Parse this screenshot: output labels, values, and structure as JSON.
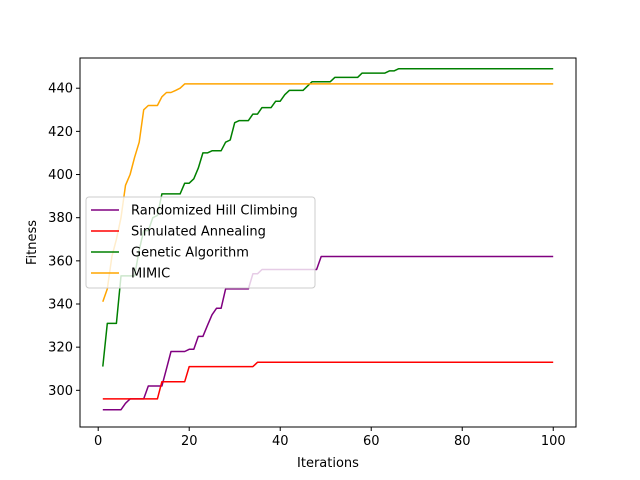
{
  "chart_data": {
    "type": "line",
    "title": "",
    "xlabel": "Iterations",
    "ylabel": "Fitness",
    "xlim": [
      -4,
      105
    ],
    "ylim": [
      283,
      454
    ],
    "xticks": [
      0,
      20,
      40,
      60,
      80,
      100
    ],
    "yticks": [
      300,
      320,
      340,
      360,
      380,
      400,
      420,
      440
    ],
    "grid": false,
    "legend_position": "center-left",
    "series": [
      {
        "name": "Randomized Hill Climbing",
        "color": "#800080",
        "points": [
          [
            1,
            291
          ],
          [
            2,
            291
          ],
          [
            3,
            291
          ],
          [
            4,
            291
          ],
          [
            5,
            291
          ],
          [
            6,
            294
          ],
          [
            7,
            296
          ],
          [
            8,
            296
          ],
          [
            9,
            296
          ],
          [
            10,
            296
          ],
          [
            11,
            302
          ],
          [
            12,
            302
          ],
          [
            13,
            302
          ],
          [
            14,
            302
          ],
          [
            15,
            310
          ],
          [
            16,
            318
          ],
          [
            17,
            318
          ],
          [
            18,
            318
          ],
          [
            19,
            318
          ],
          [
            20,
            319
          ],
          [
            21,
            319
          ],
          [
            22,
            325
          ],
          [
            23,
            325
          ],
          [
            24,
            330
          ],
          [
            25,
            335
          ],
          [
            26,
            338
          ],
          [
            27,
            338
          ],
          [
            28,
            347
          ],
          [
            29,
            347
          ],
          [
            30,
            347
          ],
          [
            31,
            347
          ],
          [
            32,
            347
          ],
          [
            33,
            347
          ],
          [
            34,
            354
          ],
          [
            35,
            354
          ],
          [
            36,
            356
          ],
          [
            37,
            356
          ],
          [
            40,
            356
          ],
          [
            45,
            356
          ],
          [
            48,
            356
          ],
          [
            49,
            362
          ],
          [
            60,
            362
          ],
          [
            80,
            362
          ],
          [
            100,
            362
          ]
        ]
      },
      {
        "name": "Simulated Annealing",
        "color": "#ff0000",
        "points": [
          [
            1,
            296
          ],
          [
            2,
            296
          ],
          [
            3,
            296
          ],
          [
            5,
            296
          ],
          [
            8,
            296
          ],
          [
            10,
            296
          ],
          [
            12,
            296
          ],
          [
            13,
            296
          ],
          [
            14,
            304
          ],
          [
            15,
            304
          ],
          [
            17,
            304
          ],
          [
            19,
            304
          ],
          [
            20,
            311
          ],
          [
            21,
            311
          ],
          [
            25,
            311
          ],
          [
            30,
            311
          ],
          [
            34,
            311
          ],
          [
            35,
            313
          ],
          [
            40,
            313
          ],
          [
            60,
            313
          ],
          [
            80,
            313
          ],
          [
            100,
            313
          ]
        ]
      },
      {
        "name": "Genetic Algorithm",
        "color": "#008000",
        "points": [
          [
            1,
            311
          ],
          [
            2,
            331
          ],
          [
            3,
            331
          ],
          [
            4,
            331
          ],
          [
            5,
            353
          ],
          [
            6,
            353
          ],
          [
            7,
            353
          ],
          [
            8,
            353
          ],
          [
            9,
            365
          ],
          [
            10,
            374
          ],
          [
            11,
            374
          ],
          [
            12,
            380
          ],
          [
            13,
            381
          ],
          [
            14,
            391
          ],
          [
            15,
            391
          ],
          [
            16,
            391
          ],
          [
            17,
            391
          ],
          [
            18,
            391
          ],
          [
            19,
            396
          ],
          [
            20,
            396
          ],
          [
            21,
            398
          ],
          [
            22,
            403
          ],
          [
            23,
            410
          ],
          [
            24,
            410
          ],
          [
            25,
            411
          ],
          [
            26,
            411
          ],
          [
            27,
            411
          ],
          [
            28,
            415
          ],
          [
            29,
            416
          ],
          [
            30,
            424
          ],
          [
            31,
            425
          ],
          [
            32,
            425
          ],
          [
            33,
            425
          ],
          [
            34,
            428
          ],
          [
            35,
            428
          ],
          [
            36,
            431
          ],
          [
            37,
            431
          ],
          [
            38,
            431
          ],
          [
            39,
            434
          ],
          [
            40,
            434
          ],
          [
            41,
            437
          ],
          [
            42,
            439
          ],
          [
            43,
            439
          ],
          [
            44,
            439
          ],
          [
            45,
            439
          ],
          [
            46,
            441
          ],
          [
            47,
            443
          ],
          [
            50,
            443
          ],
          [
            51,
            443
          ],
          [
            52,
            445
          ],
          [
            55,
            445
          ],
          [
            57,
            445
          ],
          [
            58,
            447
          ],
          [
            60,
            447
          ],
          [
            63,
            447
          ],
          [
            64,
            448
          ],
          [
            65,
            448
          ],
          [
            66,
            449
          ],
          [
            70,
            449
          ],
          [
            80,
            449
          ],
          [
            100,
            449
          ]
        ]
      },
      {
        "name": "MIMIC",
        "color": "#ffa500",
        "points": [
          [
            1,
            341
          ],
          [
            2,
            347
          ],
          [
            3,
            362
          ],
          [
            4,
            370
          ],
          [
            5,
            380
          ],
          [
            6,
            395
          ],
          [
            7,
            400
          ],
          [
            8,
            408
          ],
          [
            9,
            415
          ],
          [
            10,
            430
          ],
          [
            11,
            432
          ],
          [
            12,
            432
          ],
          [
            13,
            432
          ],
          [
            14,
            436
          ],
          [
            15,
            438
          ],
          [
            16,
            438
          ],
          [
            17,
            439
          ],
          [
            18,
            440
          ],
          [
            19,
            442
          ],
          [
            20,
            442
          ],
          [
            30,
            442
          ],
          [
            40,
            442
          ],
          [
            50,
            442
          ],
          [
            60,
            442
          ],
          [
            80,
            442
          ],
          [
            100,
            442
          ]
        ]
      }
    ]
  }
}
